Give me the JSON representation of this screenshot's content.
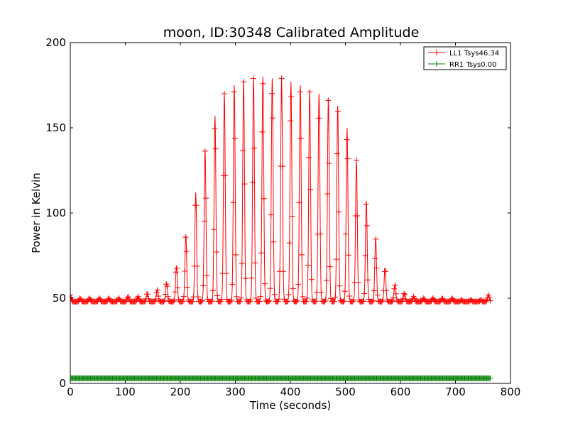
{
  "chart_data": {
    "type": "line",
    "title": "moon, ID:30348 Calibrated Amplitude",
    "xlabel": "Time (seconds)",
    "ylabel": "Power in Kelvin",
    "xlim": [
      0,
      800
    ],
    "ylim": [
      0,
      200
    ],
    "xticks": [
      "0",
      "100",
      "200",
      "300",
      "400",
      "500",
      "600",
      "700",
      "800"
    ],
    "yticks": [
      "0",
      "50",
      "100",
      "150",
      "200"
    ],
    "grid": false,
    "legend_position": "top-right",
    "marker": "+",
    "series": [
      {
        "name": "LL1 Tsys46.34",
        "color": "#ff0000",
        "baseline": 48,
        "t_start": 0,
        "t_end": 764,
        "peaks": [
          {
            "t": 0,
            "v": 52
          },
          {
            "t": 18,
            "v": 50
          },
          {
            "t": 35,
            "v": 50
          },
          {
            "t": 53,
            "v": 50
          },
          {
            "t": 70,
            "v": 50
          },
          {
            "t": 88,
            "v": 50
          },
          {
            "t": 105,
            "v": 51
          },
          {
            "t": 123,
            "v": 51
          },
          {
            "t": 140,
            "v": 53
          },
          {
            "t": 158,
            "v": 55
          },
          {
            "t": 175,
            "v": 59
          },
          {
            "t": 193,
            "v": 69
          },
          {
            "t": 210,
            "v": 87
          },
          {
            "t": 228,
            "v": 112
          },
          {
            "t": 245,
            "v": 137
          },
          {
            "t": 263,
            "v": 157
          },
          {
            "t": 280,
            "v": 170
          },
          {
            "t": 298,
            "v": 175
          },
          {
            "t": 315,
            "v": 178
          },
          {
            "t": 333,
            "v": 180
          },
          {
            "t": 350,
            "v": 180
          },
          {
            "t": 367,
            "v": 179
          },
          {
            "t": 384,
            "v": 179
          },
          {
            "t": 401,
            "v": 177
          },
          {
            "t": 418,
            "v": 175
          },
          {
            "t": 435,
            "v": 172
          },
          {
            "t": 452,
            "v": 170
          },
          {
            "t": 469,
            "v": 167
          },
          {
            "t": 486,
            "v": 163
          },
          {
            "t": 503,
            "v": 150
          },
          {
            "t": 520,
            "v": 131
          },
          {
            "t": 538,
            "v": 107
          },
          {
            "t": 555,
            "v": 85
          },
          {
            "t": 572,
            "v": 68
          },
          {
            "t": 590,
            "v": 58
          },
          {
            "t": 607,
            "v": 53
          },
          {
            "t": 624,
            "v": 51
          },
          {
            "t": 642,
            "v": 50
          },
          {
            "t": 659,
            "v": 50
          },
          {
            "t": 676,
            "v": 50
          },
          {
            "t": 694,
            "v": 50
          },
          {
            "t": 711,
            "v": 49
          },
          {
            "t": 728,
            "v": 49
          },
          {
            "t": 746,
            "v": 49
          },
          {
            "t": 760,
            "v": 52
          }
        ]
      },
      {
        "name": "RR1 Tsys0.00",
        "color": "#008000",
        "baseline": 3,
        "t_start": 0,
        "t_end": 764
      }
    ]
  }
}
